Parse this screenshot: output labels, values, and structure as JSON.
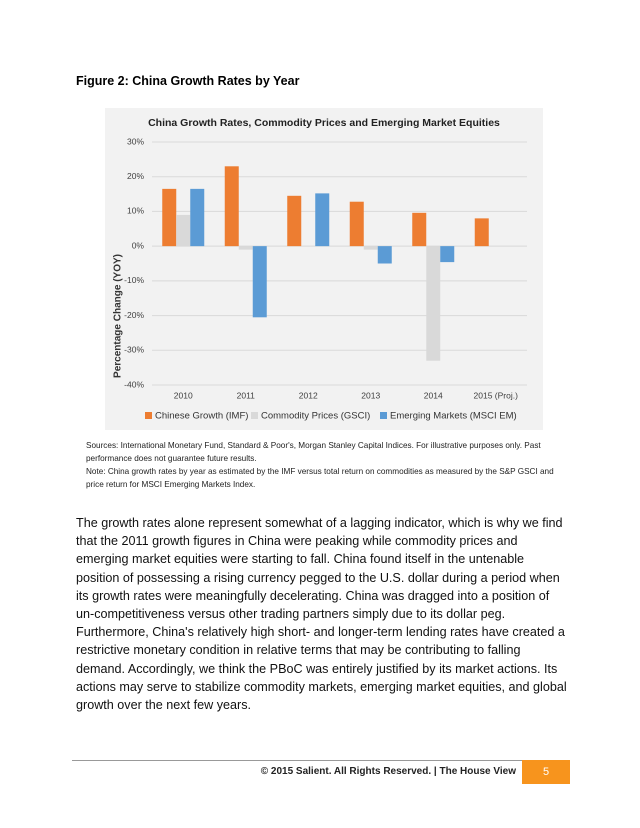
{
  "figure_title": "Figure 2: China Growth Rates by Year",
  "chart_data": {
    "type": "bar",
    "title": "China Growth Rates, Commodity Prices and Emerging Market Equities",
    "y_label": "Percentage Change (YOY)",
    "categories": [
      "2010",
      "2011",
      "2012",
      "2013",
      "2014",
      "2015 (Proj.)"
    ],
    "series": [
      {
        "name": "Chinese Growth (IMF)",
        "color": "#ed7d31",
        "values": [
          16.5,
          23,
          14.5,
          12.8,
          9.6,
          8
        ]
      },
      {
        "name": "Commodity Prices (GSCI)",
        "color": "#d9d9d9",
        "values": [
          9,
          -1,
          null,
          -1,
          -33,
          null
        ]
      },
      {
        "name": "Emerging Markets (MSCI EM)",
        "color": "#5b9bd5",
        "values": [
          16.5,
          -20.5,
          15.2,
          -5,
          -4.6,
          null
        ]
      }
    ],
    "ylim": [
      -40,
      30
    ],
    "yticks": [
      {
        "value": -40,
        "label": "-40%"
      },
      {
        "value": -30,
        "label": "-30%"
      },
      {
        "value": -20,
        "label": "-20%"
      },
      {
        "value": -10,
        "label": "-10%"
      },
      {
        "value": 0,
        "label": "0%"
      },
      {
        "value": 10,
        "label": "10%"
      },
      {
        "value": 20,
        "label": "20%"
      },
      {
        "value": 30,
        "label": "30%"
      }
    ],
    "grid": true,
    "legend": "bottom"
  },
  "notes": [
    "Sources: International Monetary Fund, Standard & Poor's, Morgan Stanley Capital Indices. For illustrative purposes only.  Past performance does not guarantee future results.",
    "Note: China growth rates by year as estimated by the IMF versus total return on commodities as measured by the S&P GSCI and price return for MSCI Emerging Markets Index."
  ],
  "body": "The growth rates alone represent somewhat of a lagging indicator, which is why we find that the 2011 growth figures in China were peaking while commodity prices and emerging market equities were starting to fall. China found itself in the untenable position of possessing a rising currency pegged to the U.S. dollar during a period when its growth rates were meaningfully decelerating. China was dragged into a position of un-competitiveness versus other trading partners simply due to its dollar peg. Furthermore, China's relatively high short- and longer-term lending rates have created a restrictive monetary condition in relative terms that may be contributing to falling demand. Accordingly, we think the PBoC was entirely justified by its market actions. Its actions may serve to stabilize commodity markets, emerging market equities, and global growth over the next few years.",
  "footer": {
    "text": "© 2015 Salient. All Rights Reserved. | The House View",
    "page": "5"
  }
}
